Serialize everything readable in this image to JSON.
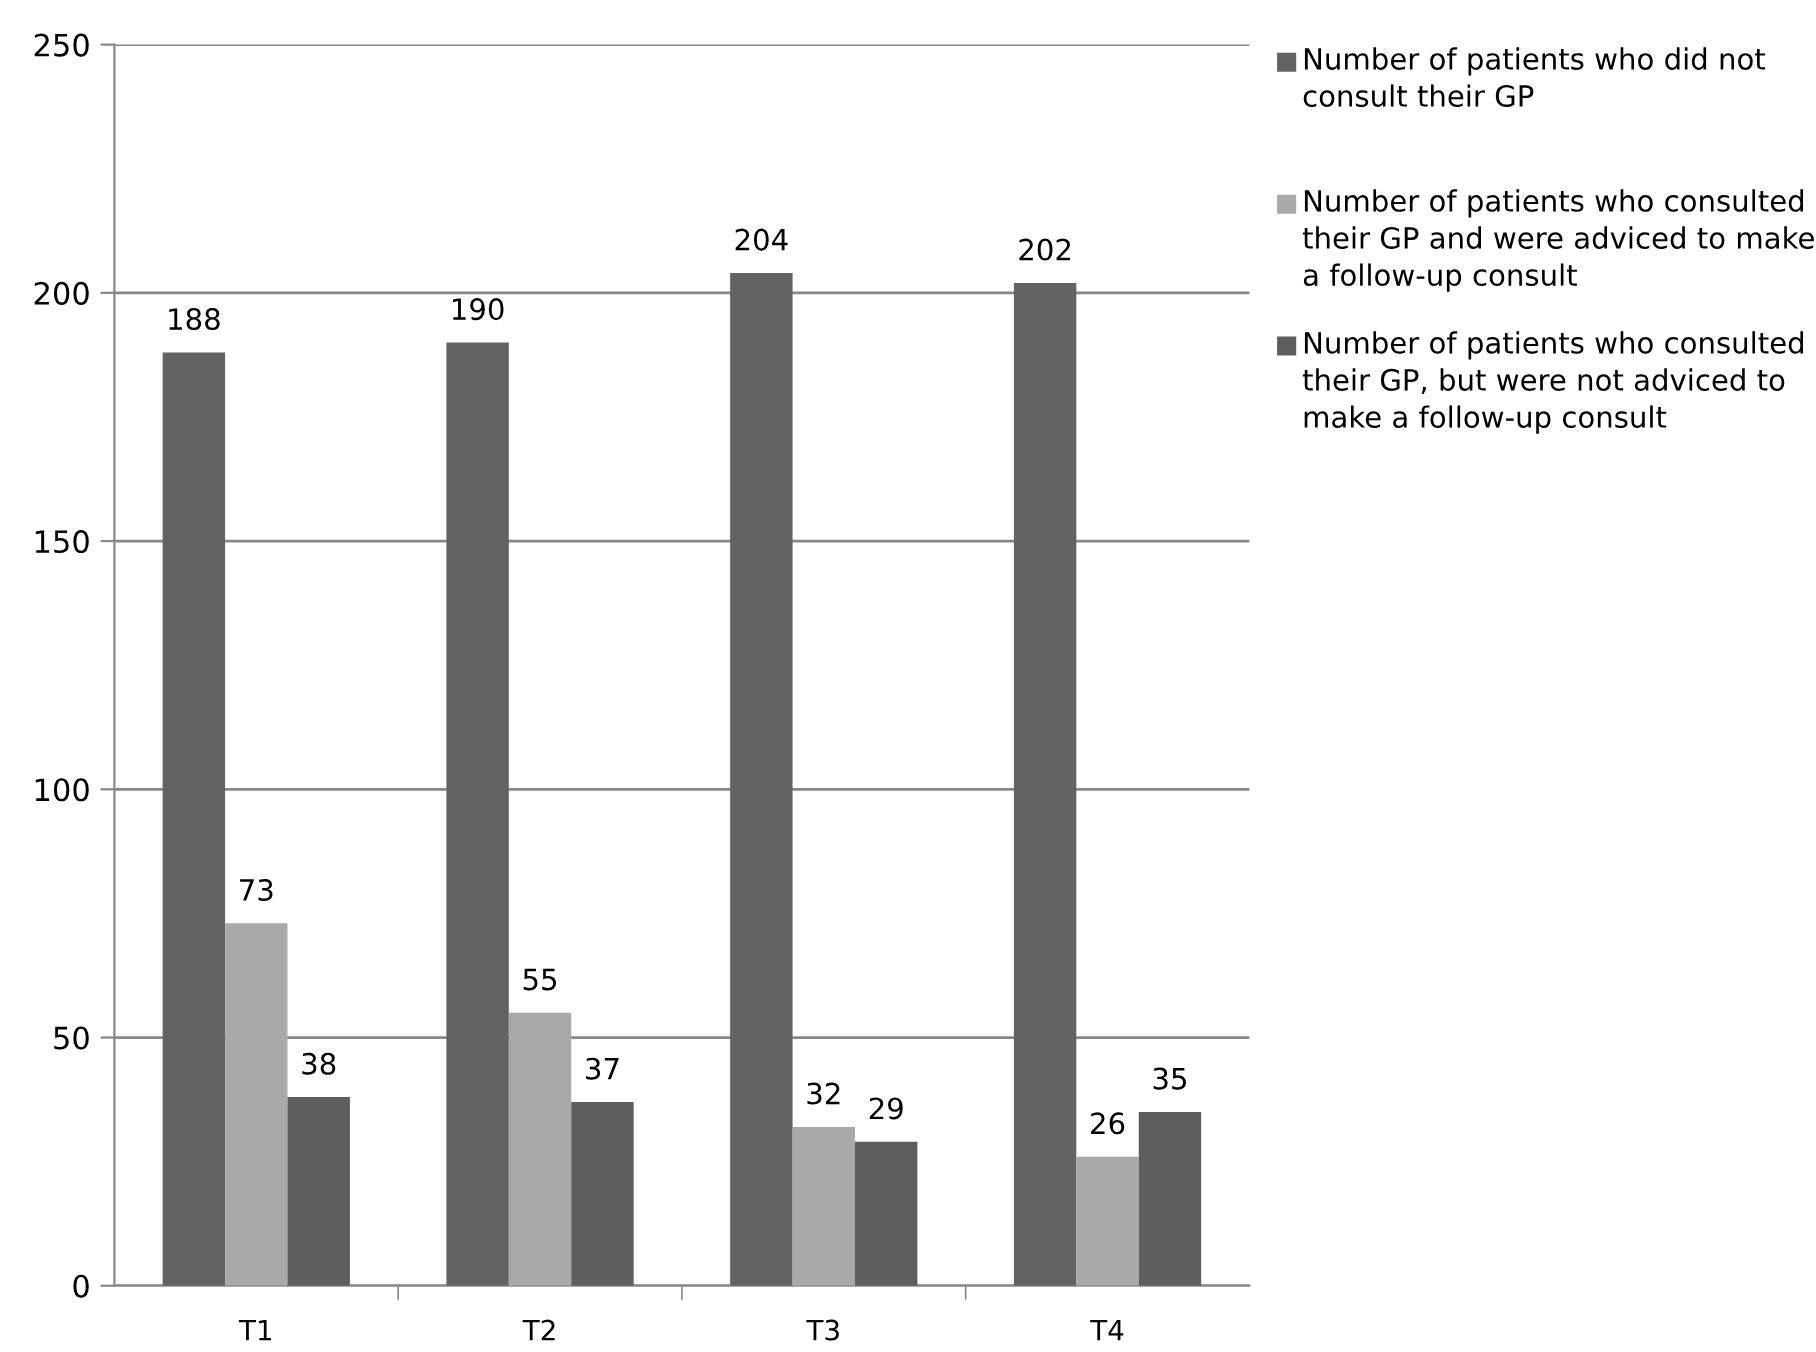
{
  "chart_data": {
    "type": "bar",
    "categories": [
      "T1",
      "T2",
      "T3",
      "T4"
    ],
    "series": [
      {
        "name": "Number of patients who did not consult their GP",
        "color": "#636363",
        "values": [
          188,
          190,
          204,
          202
        ]
      },
      {
        "name": "Number of patients who consulted their GP and were adviced to make a follow-up consult",
        "color": "#a9a9a9",
        "values": [
          73,
          55,
          32,
          26
        ]
      },
      {
        "name": "Number of patients who consulted their GP, but were not adviced to make a follow-up consult",
        "color": "#5e5e5e",
        "values": [
          38,
          37,
          29,
          35
        ]
      }
    ],
    "ylim": [
      0,
      250
    ],
    "yticks": [
      0,
      50,
      100,
      150,
      200,
      250
    ],
    "grid": "y",
    "legend": "top right",
    "data_labels": true
  }
}
